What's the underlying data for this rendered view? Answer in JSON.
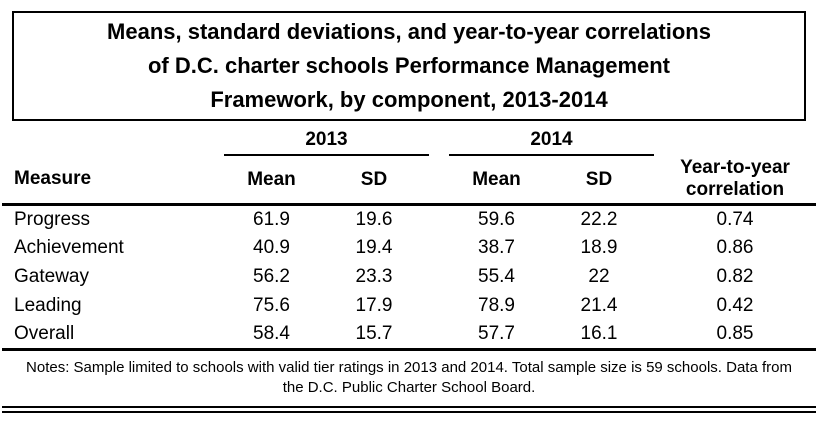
{
  "title_lines": [
    "Means, standard deviations, and year-to-year correlations",
    "of D.C. charter schools Performance Management",
    "Framework, by component, 2013-2014"
  ],
  "table": {
    "year_groups": {
      "y2013": "2013",
      "y2014": "2014"
    },
    "columns": {
      "measure": "Measure",
      "mean": "Mean",
      "sd": "SD",
      "correlation": "Year-to-year correlation"
    },
    "rows": [
      {
        "measure": "Progress",
        "mean_2013": "61.9",
        "sd_2013": "19.6",
        "mean_2014": "59.6",
        "sd_2014": "22.2",
        "correlation": "0.74"
      },
      {
        "measure": "Achievement",
        "mean_2013": "40.9",
        "sd_2013": "19.4",
        "mean_2014": "38.7",
        "sd_2014": "18.9",
        "correlation": "0.86"
      },
      {
        "measure": "Gateway",
        "mean_2013": "56.2",
        "sd_2013": "23.3",
        "mean_2014": "55.4",
        "sd_2014": "22",
        "correlation": "0.82"
      },
      {
        "measure": "Leading",
        "mean_2013": "75.6",
        "sd_2013": "17.9",
        "mean_2014": "78.9",
        "sd_2014": "21.4",
        "correlation": "0.42"
      },
      {
        "measure": "Overall",
        "mean_2013": "58.4",
        "sd_2013": "15.7",
        "mean_2014": "57.7",
        "sd_2014": "16.1",
        "correlation": "0.85"
      }
    ]
  },
  "notes": "Notes: Sample limited to schools with valid tier ratings in 2013 and 2014. Total sample size is 59 schools. Data from the D.C. Public Charter School Board.",
  "colors": {
    "text": "#000000",
    "background": "#ffffff",
    "border": "#000000"
  }
}
